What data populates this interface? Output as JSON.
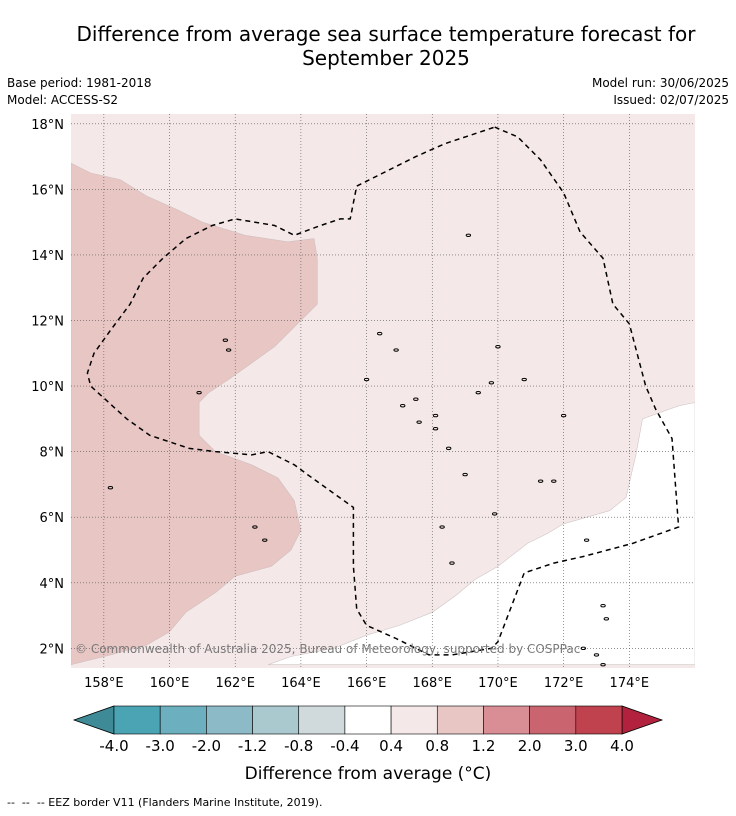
{
  "title_line1": "Difference from average sea surface temperature forecast for",
  "title_line2": "September 2025",
  "base_period": "Base period: 1981-2018",
  "model": "Model: ACCESS-S2",
  "model_run": "Model run: 30/06/2025",
  "issued": "Issued: 02/07/2025",
  "copyright": "© Commonwealth of Australia 2025, Bureau of Meteorology, supported by COSPPac",
  "colorbar": {
    "label": "Difference from average (°C)",
    "ticks": [
      "-4.0",
      "-3.0",
      "-2.0",
      "-1.2",
      "-0.8",
      "-0.4",
      "0.4",
      "0.8",
      "1.2",
      "2.0",
      "3.0",
      "4.0"
    ],
    "colors": [
      "#3e8a96",
      "#4aa4b4",
      "#6cb0bf",
      "#8cbac6",
      "#a9c9ce",
      "#d0d9db",
      "#ffffff",
      "#f5e8e8",
      "#e8c6c4",
      "#d98d95",
      "#ca6570",
      "#c0424f",
      "#b2223e"
    ]
  },
  "map": {
    "lon_range": [
      157,
      176
    ],
    "lat_range": [
      1.4,
      18.3
    ],
    "lon_labels": [
      "158°E",
      "160°E",
      "162°E",
      "164°E",
      "166°E",
      "168°E",
      "170°E",
      "172°E",
      "174°E"
    ],
    "lat_labels": [
      "2°N",
      "4°N",
      "6°N",
      "8°N",
      "10°N",
      "12°N",
      "14°N",
      "16°N",
      "18°N"
    ],
    "background_category": "0.4 to 0.8",
    "region_0_4": [
      [
        176,
        9.5
      ],
      [
        175.5,
        9.4
      ],
      [
        174.4,
        9.0
      ],
      [
        174.2,
        7.9
      ],
      [
        173.9,
        6.6
      ],
      [
        173.4,
        6.2
      ],
      [
        172.0,
        5.8
      ],
      [
        171.5,
        5.5
      ],
      [
        170.9,
        5.2
      ],
      [
        170.0,
        4.5
      ],
      [
        169.3,
        4.1
      ],
      [
        168.7,
        3.6
      ],
      [
        168.0,
        3.1
      ],
      [
        167.0,
        2.7
      ],
      [
        166.0,
        2.4
      ],
      [
        165.0,
        2.0
      ],
      [
        163.7,
        1.75
      ],
      [
        163.0,
        1.5
      ],
      [
        176,
        1.5
      ]
    ],
    "region_0_8": [
      [
        157,
        16.8
      ],
      [
        157.6,
        16.5
      ],
      [
        158.5,
        16.3
      ],
      [
        159.3,
        15.8
      ],
      [
        160.2,
        15.4
      ],
      [
        161.0,
        15.0
      ],
      [
        162.3,
        14.6
      ],
      [
        163.6,
        14.4
      ],
      [
        164.4,
        14.5
      ],
      [
        164.5,
        13.9
      ],
      [
        164.5,
        12.5
      ],
      [
        163.9,
        11.9
      ],
      [
        163.2,
        11.2
      ],
      [
        162.5,
        10.7
      ],
      [
        161.8,
        10.2
      ],
      [
        161.2,
        9.8
      ],
      [
        160.9,
        9.5
      ],
      [
        160.9,
        8.5
      ],
      [
        161.4,
        8.0
      ],
      [
        162.5,
        7.6
      ],
      [
        163.3,
        7.2
      ],
      [
        163.8,
        6.5
      ],
      [
        164.0,
        5.6
      ],
      [
        163.7,
        5.0
      ],
      [
        163.1,
        4.5
      ],
      [
        162.0,
        4.2
      ],
      [
        161.4,
        3.7
      ],
      [
        160.5,
        3.1
      ],
      [
        160.0,
        2.5
      ],
      [
        159.3,
        2.1
      ],
      [
        158.2,
        1.8
      ],
      [
        157.0,
        1.5
      ]
    ],
    "eez_border": [
      [
        169.9,
        17.9
      ],
      [
        170.6,
        17.6
      ],
      [
        171.3,
        16.9
      ],
      [
        172.0,
        15.9
      ],
      [
        172.5,
        14.7
      ],
      [
        173.2,
        13.9
      ],
      [
        173.5,
        12.5
      ],
      [
        174.0,
        11.9
      ],
      [
        174.5,
        10.0
      ],
      [
        174.8,
        9.3
      ],
      [
        175.3,
        8.4
      ],
      [
        175.5,
        5.7
      ],
      [
        174.1,
        5.2
      ],
      [
        172.6,
        4.8
      ],
      [
        171.7,
        4.6
      ],
      [
        170.8,
        4.3
      ],
      [
        170.0,
        2.2
      ],
      [
        169.8,
        2.0
      ],
      [
        168.6,
        1.8
      ],
      [
        167.9,
        1.8
      ],
      [
        166.9,
        2.3
      ],
      [
        166.0,
        2.7
      ],
      [
        165.7,
        3.2
      ],
      [
        165.6,
        4.5
      ],
      [
        165.6,
        6.3
      ],
      [
        164.2,
        7.3
      ],
      [
        163.8,
        7.6
      ],
      [
        163.0,
        8.0
      ],
      [
        162.5,
        7.9
      ],
      [
        161.4,
        8.0
      ],
      [
        160.6,
        8.1
      ],
      [
        160.0,
        8.3
      ],
      [
        159.4,
        8.5
      ],
      [
        158.7,
        9.0
      ],
      [
        157.6,
        10.0
      ],
      [
        157.5,
        10.4
      ],
      [
        157.7,
        11.0
      ],
      [
        158.2,
        11.7
      ],
      [
        158.8,
        12.5
      ],
      [
        159.2,
        13.3
      ],
      [
        159.8,
        13.9
      ],
      [
        160.5,
        14.5
      ],
      [
        161.3,
        14.9
      ],
      [
        162.0,
        15.1
      ],
      [
        163.2,
        14.9
      ],
      [
        163.8,
        14.6
      ],
      [
        164.6,
        14.9
      ],
      [
        165.2,
        15.1
      ],
      [
        165.5,
        15.1
      ],
      [
        165.7,
        16.1
      ],
      [
        166.5,
        16.5
      ],
      [
        167.5,
        17.0
      ],
      [
        168.4,
        17.4
      ],
      [
        169.3,
        17.7
      ],
      [
        169.9,
        17.9
      ]
    ],
    "islands": [
      [
        158.2,
        6.9
      ],
      [
        161.7,
        11.4
      ],
      [
        161.8,
        11.1
      ],
      [
        162.9,
        5.3
      ],
      [
        166.4,
        11.6
      ],
      [
        166.9,
        11.1
      ],
      [
        166.0,
        10.2
      ],
      [
        167.1,
        9.4
      ],
      [
        168.1,
        8.7
      ],
      [
        168.5,
        8.1
      ],
      [
        169.0,
        7.3
      ],
      [
        169.9,
        6.1
      ],
      [
        171.3,
        7.1
      ],
      [
        171.7,
        7.1
      ],
      [
        172.7,
        5.3
      ],
      [
        173.2,
        3.3
      ],
      [
        173.3,
        2.9
      ],
      [
        168.6,
        4.6
      ],
      [
        168.3,
        5.7
      ],
      [
        169.1,
        14.6
      ],
      [
        170.0,
        11.2
      ],
      [
        172.0,
        9.1
      ],
      [
        170.8,
        10.2
      ],
      [
        169.4,
        9.8
      ],
      [
        169.8,
        10.1
      ],
      [
        160.9,
        9.8
      ],
      [
        162.6,
        5.7
      ],
      [
        168.1,
        9.1
      ],
      [
        167.6,
        8.9
      ],
      [
        167.5,
        9.6
      ],
      [
        172.6,
        2.0
      ],
      [
        173.0,
        1.8
      ],
      [
        173.2,
        1.5
      ]
    ]
  },
  "eez_legend": "--  --  -- EEZ border V11 (Flanders Marine Institute, 2019)."
}
